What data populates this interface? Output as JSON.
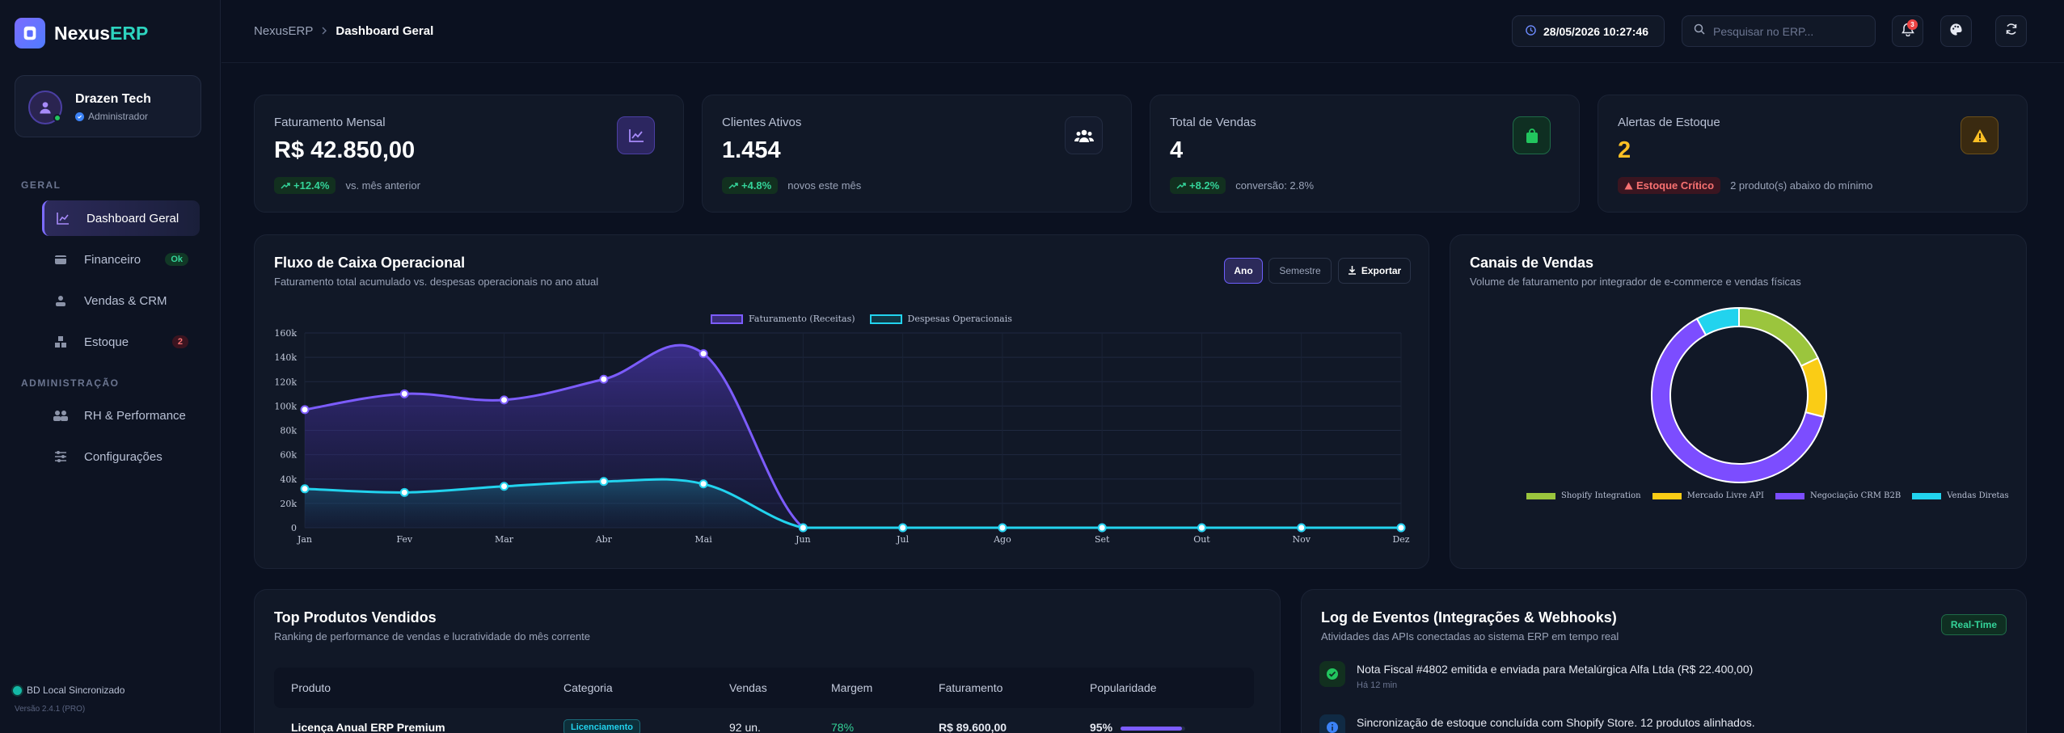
{
  "brand": {
    "name_main": "Nexus",
    "name_accent": "ERP"
  },
  "user": {
    "name": "Drazen Tech",
    "role": "Administrador"
  },
  "nav": {
    "section_general": "GERAL",
    "section_admin": "ADMINISTRAÇÃO",
    "items": [
      {
        "label": "Dashboard Geral",
        "icon": "chart-line-icon",
        "active": true
      },
      {
        "label": "Financeiro",
        "icon": "wallet-icon",
        "badge": "Ok"
      },
      {
        "label": "Vendas & CRM",
        "icon": "handshake-icon"
      },
      {
        "label": "Estoque",
        "icon": "boxes-icon",
        "badge": "2"
      },
      {
        "label": "RH & Performance",
        "icon": "users-icon"
      },
      {
        "label": "Configurações",
        "icon": "sliders-icon"
      }
    ]
  },
  "footer": {
    "db_status": "BD Local Sincronizado",
    "version": "Versão 2.4.1 (PRO)"
  },
  "header": {
    "breadcrumb_root": "NexusERP",
    "breadcrumb_current": "Dashboard Geral",
    "datetime": "28/05/2026 10:27:46",
    "search_placeholder": "Pesquisar no ERP...",
    "notifications_count": "3"
  },
  "kpis": [
    {
      "label": "Faturamento Mensal",
      "value": "R$ 42.850,00",
      "delta": "+12.4%",
      "note": "vs. mês anterior",
      "icon": "chart-icon",
      "accent": "#8b7cff"
    },
    {
      "label": "Clientes Ativos",
      "value": "1.454",
      "delta": "+4.8%",
      "note": "novos este mês",
      "icon": "users-icon",
      "accent": "#ffffff"
    },
    {
      "label": "Total de Vendas",
      "value": "4",
      "delta": "+8.2%",
      "note": "conversão: 2.8%",
      "icon": "shopping-bag-icon",
      "accent": "#22c55e"
    },
    {
      "label": "Alertas de Estoque",
      "value": "2",
      "alert": "Estoque Crítico",
      "note": "2 produto(s) abaixo do mínimo",
      "icon": "warning-icon",
      "accent": "#fbbf24"
    }
  ],
  "cashflow": {
    "title": "Fluxo de Caixa Operacional",
    "subtitle": "Faturamento total acumulado vs. despesas operacionais no ano atual",
    "btn_year": "Ano",
    "btn_semester": "Semestre",
    "btn_export": "Exportar"
  },
  "channels": {
    "title": "Canais de Vendas",
    "subtitle": "Volume de faturamento por integrador de e-commerce e vendas físicas"
  },
  "chart_data": [
    {
      "type": "area",
      "categories": [
        "Jan",
        "Fev",
        "Mar",
        "Abr",
        "Mai",
        "Jun",
        "Jul",
        "Ago",
        "Set",
        "Out",
        "Nov",
        "Dez"
      ],
      "ylim": [
        0,
        160000
      ],
      "yticks": [
        "0",
        "20k",
        "40k",
        "60k",
        "80k",
        "100k",
        "120k",
        "140k",
        "160k"
      ],
      "legend_placement": "top",
      "grid": true,
      "series": [
        {
          "name": "Faturamento (Receitas)",
          "color": "#7c5cff",
          "values": [
            97000,
            110000,
            105000,
            122000,
            143000,
            0,
            0,
            0,
            0,
            0,
            0,
            0
          ]
        },
        {
          "name": "Despesas Operacionais",
          "color": "#22d3ee",
          "values": [
            32000,
            29000,
            34000,
            38000,
            36000,
            0,
            0,
            0,
            0,
            0,
            0,
            0
          ]
        }
      ]
    },
    {
      "type": "pie",
      "donut": true,
      "legend_placement": "bottom",
      "labels": [
        "Shopify Integration",
        "Mercado Livre API",
        "Negociação CRM B2B",
        "Vendas Diretas"
      ],
      "values": [
        18,
        11,
        63,
        8
      ],
      "colors": [
        "#9bc53d",
        "#facc15",
        "#7c4dff",
        "#22d3ee"
      ]
    }
  ],
  "products": {
    "title": "Top Produtos Vendidos",
    "subtitle": "Ranking de performance de vendas e lucratividade do mês corrente",
    "columns": [
      "Produto",
      "Categoria",
      "Vendas",
      "Margem",
      "Faturamento",
      "Popularidade"
    ],
    "rows": [
      {
        "product": "Licença Anual ERP Premium",
        "category": "Licenciamento",
        "sales": "92 un.",
        "margin": "78%",
        "revenue": "R$ 89.600,00",
        "popularity": "95%",
        "popularity_value": 0.95
      }
    ]
  },
  "log": {
    "title": "Log de Eventos (Integrações & Webhooks)",
    "subtitle": "Atividades das APIs conectadas ao sistema ERP em tempo real",
    "badge": "Real-Time",
    "items": [
      {
        "text": "Nota Fiscal #4802 emitida e enviada para Metalúrgica Alfa Ltda (R$ 22.400,00)",
        "time": "Há 12 min",
        "icon": "check-icon"
      },
      {
        "text": "Sincronização de estoque concluída com Shopify Store. 12 produtos alinhados.",
        "time": "",
        "icon": "info-icon"
      }
    ]
  }
}
